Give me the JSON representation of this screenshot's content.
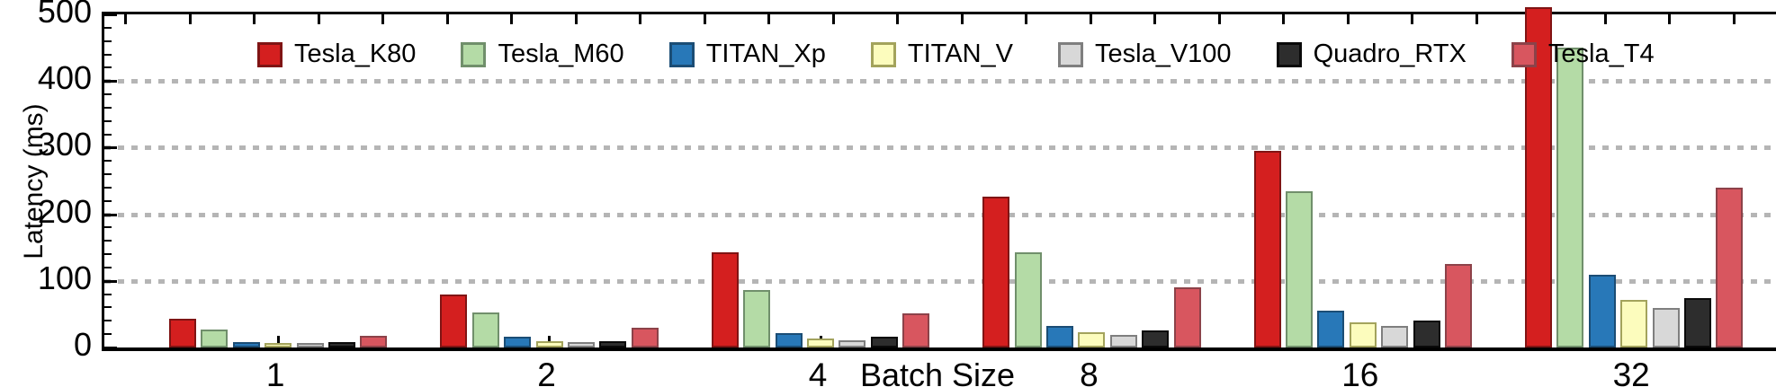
{
  "chart_data": {
    "type": "bar",
    "title": "",
    "xlabel": "Batch Size",
    "ylabel": "Latency (ms)",
    "categories": [
      "1",
      "2",
      "4",
      "8",
      "16",
      "32"
    ],
    "ylim": [
      0,
      500
    ],
    "yticks": [
      0,
      100,
      200,
      300,
      400,
      500
    ],
    "y_minor_tick_step": 20,
    "gridlines": {
      "style": "dotted",
      "color": "#b5b5b5",
      "at": [
        100,
        200,
        300,
        400
      ]
    },
    "legend_position": "top-inside-horizontal",
    "series": [
      {
        "name": "Tesla_K80",
        "fill": "#d41f1f",
        "border": "#801414",
        "values": [
          43,
          79,
          143,
          226,
          295,
          500
        ],
        "clipped": [
          false,
          false,
          false,
          false,
          false,
          true
        ]
      },
      {
        "name": "Tesla_M60",
        "fill": "#b4dba6",
        "border": "#708f6b",
        "values": [
          27,
          53,
          86,
          143,
          235,
          450
        ],
        "clipped": [
          false,
          false,
          false,
          false,
          false,
          false
        ]
      },
      {
        "name": "TITAN_Xp",
        "fill": "#2878b8",
        "border": "#1b4d75",
        "values": [
          8,
          16,
          22,
          32,
          55,
          109
        ],
        "clipped": [
          false,
          false,
          false,
          false,
          false,
          false
        ]
      },
      {
        "name": "TITAN_V",
        "fill": "#fcfcbd",
        "border": "#a3a35c",
        "values": [
          7,
          9,
          13,
          23,
          38,
          71
        ],
        "clipped": [
          false,
          false,
          false,
          false,
          false,
          false
        ]
      },
      {
        "name": "Tesla_V100",
        "fill": "#d8d8d8",
        "border": "#7f7f7f",
        "values": [
          7,
          8,
          11,
          19,
          32,
          59
        ],
        "clipped": [
          false,
          false,
          false,
          false,
          false,
          false
        ]
      },
      {
        "name": "Quadro_RTX",
        "fill": "#2d2d2d",
        "border": "#0a0a0a",
        "values": [
          8,
          10,
          16,
          26,
          40,
          74
        ],
        "clipped": [
          false,
          false,
          false,
          false,
          false,
          false
        ]
      },
      {
        "name": "Tesla_T4",
        "fill": "#d8565f",
        "border": "#8c4249",
        "values": [
          18,
          29,
          51,
          90,
          126,
          240
        ],
        "clipped": [
          false,
          false,
          false,
          false,
          false,
          false
        ]
      }
    ]
  }
}
